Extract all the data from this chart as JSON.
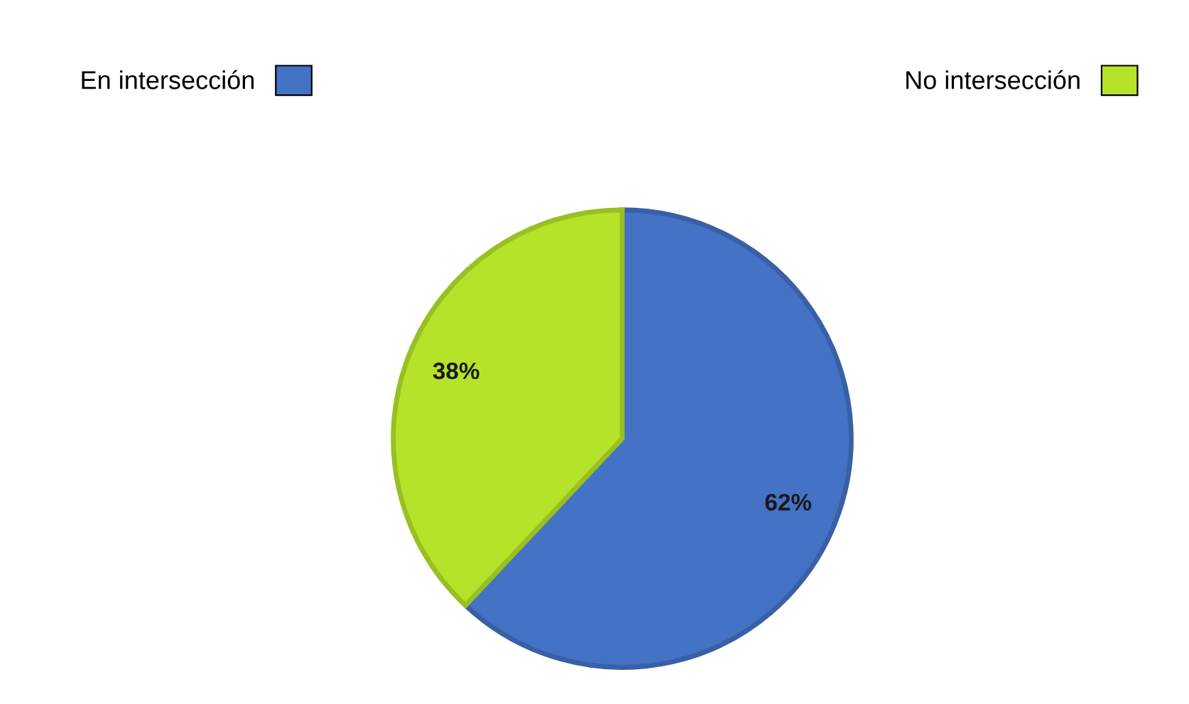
{
  "chart_data": {
    "type": "pie",
    "categories": [
      "En intersección",
      "No intersección"
    ],
    "values": [
      62,
      38
    ],
    "colors": [
      "#4472c4",
      "#b5e32a"
    ],
    "value_labels": [
      "62%",
      "38%"
    ],
    "legend": "top"
  }
}
